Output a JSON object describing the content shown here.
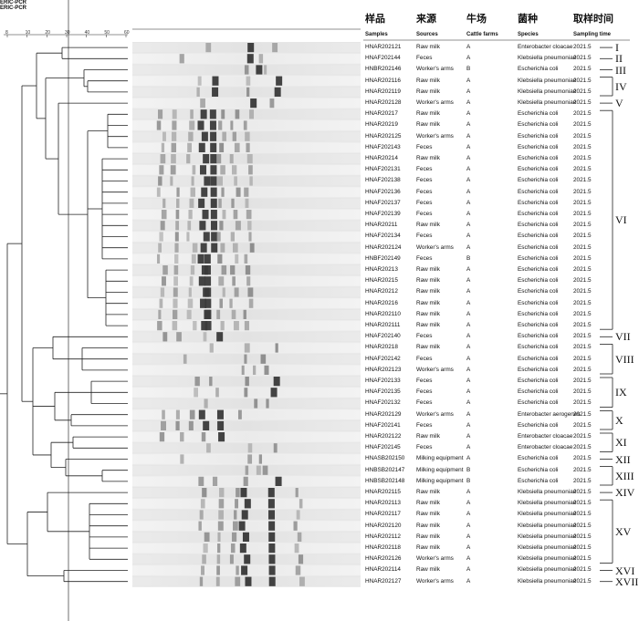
{
  "figure": {
    "dendrogram_title": "ERIC-PCR",
    "gel_title": "ERIC-PCR",
    "scale_ticks": [
      "8",
      "10",
      "20",
      "30",
      "40",
      "50",
      "60"
    ]
  },
  "headers": [
    {
      "zh": "样品",
      "en": "Samples"
    },
    {
      "zh": "来源",
      "en": "Sources"
    },
    {
      "zh": "牛场",
      "en": "Cattle farms"
    },
    {
      "zh": "菌种",
      "en": "Species"
    },
    {
      "zh": "取样时间",
      "en": "Sampling time"
    }
  ],
  "rows": [
    {
      "sample": "HNAR202121",
      "source": "Raw milk",
      "farm": "A",
      "species": "Enterobacter cloacae",
      "time": "2021.5"
    },
    {
      "sample": "HNAF202144",
      "source": "Feces",
      "farm": "A",
      "species": "Klebsiella pneumoniae",
      "time": "2021.5"
    },
    {
      "sample": "HNBR202146",
      "source": "Worker's arms",
      "farm": "B",
      "species": "Escherichia coli",
      "time": "2021.5"
    },
    {
      "sample": "HNAR202116",
      "source": "Raw milk",
      "farm": "A",
      "species": "Klebsiella pneumoniae",
      "time": "2021.5"
    },
    {
      "sample": "HNAR202119",
      "source": "Raw milk",
      "farm": "A",
      "species": "Klebsiella pneumoniae",
      "time": "2021.5"
    },
    {
      "sample": "HNAR202128",
      "source": "Worker's arms",
      "farm": "A",
      "species": "Klebsiella pneumoniae",
      "time": "2021.5"
    },
    {
      "sample": "HNAR20217",
      "source": "Raw milk",
      "farm": "A",
      "species": "Escherichia coli",
      "time": "2021.5"
    },
    {
      "sample": "HNAR20219",
      "source": "Raw milk",
      "farm": "A",
      "species": "Escherichia coli",
      "time": "2021.5"
    },
    {
      "sample": "HNAR202125",
      "source": "Worker's arms",
      "farm": "A",
      "species": "Escherichia coli",
      "time": "2021.5"
    },
    {
      "sample": "HNAF202143",
      "source": "Feces",
      "farm": "A",
      "species": "Escherichia coli",
      "time": "2021.5"
    },
    {
      "sample": "HNAR20214",
      "source": "Raw milk",
      "farm": "A",
      "species": "Escherichia coli",
      "time": "2021.5"
    },
    {
      "sample": "HNAF202131",
      "source": "Feces",
      "farm": "A",
      "species": "Escherichia coli",
      "time": "2021.5"
    },
    {
      "sample": "HNAF202138",
      "source": "Feces",
      "farm": "A",
      "species": "Escherichia coli",
      "time": "2021.5"
    },
    {
      "sample": "HNAF202136",
      "source": "Feces",
      "farm": "A",
      "species": "Escherichia coli",
      "time": "2021.5"
    },
    {
      "sample": "HNAF202137",
      "source": "Feces",
      "farm": "A",
      "species": "Escherichia coli",
      "time": "2021.5"
    },
    {
      "sample": "HNAF202139",
      "source": "Feces",
      "farm": "A",
      "species": "Escherichia coli",
      "time": "2021.5"
    },
    {
      "sample": "HNAR20211",
      "source": "Raw milk",
      "farm": "A",
      "species": "Escherichia coli",
      "time": "2021.5"
    },
    {
      "sample": "HNAF202134",
      "source": "Feces",
      "farm": "A",
      "species": "Escherichia coli",
      "time": "2021.5"
    },
    {
      "sample": "HNAR202124",
      "source": "Worker's arms",
      "farm": "A",
      "species": "Escherichia coli",
      "time": "2021.5"
    },
    {
      "sample": "HNBF202149",
      "source": "Feces",
      "farm": "B",
      "species": "Escherichia coli",
      "time": "2021.5"
    },
    {
      "sample": "HNAR20213",
      "source": "Raw milk",
      "farm": "A",
      "species": "Escherichia coli",
      "time": "2021.5"
    },
    {
      "sample": "HNAR20215",
      "source": "Raw milk",
      "farm": "A",
      "species": "Escherichia coli",
      "time": "2021.5"
    },
    {
      "sample": "HNAR20212",
      "source": "Raw milk",
      "farm": "A",
      "species": "Escherichia coli",
      "time": "2021.5"
    },
    {
      "sample": "HNAR20216",
      "source": "Raw milk",
      "farm": "A",
      "species": "Escherichia coli",
      "time": "2021.5"
    },
    {
      "sample": "HNAR202110",
      "source": "Raw milk",
      "farm": "A",
      "species": "Escherichia coli",
      "time": "2021.5"
    },
    {
      "sample": "HNAR202111",
      "source": "Raw milk",
      "farm": "A",
      "species": "Escherichia coli",
      "time": "2021.5"
    },
    {
      "sample": "HNAF202140",
      "source": "Feces",
      "farm": "A",
      "species": "Escherichia coli",
      "time": "2021.5"
    },
    {
      "sample": "HNAR20218",
      "source": "Raw milk",
      "farm": "A",
      "species": "Escherichia coli",
      "time": "2021.5"
    },
    {
      "sample": "HNAF202142",
      "source": "Feces",
      "farm": "A",
      "species": "Escherichia coli",
      "time": "2021.5"
    },
    {
      "sample": "HNAR202123",
      "source": "Worker's arms",
      "farm": "A",
      "species": "Escherichia coli",
      "time": "2021.5"
    },
    {
      "sample": "HNAF202133",
      "source": "Feces",
      "farm": "A",
      "species": "Escherichia coli",
      "time": "2021.5"
    },
    {
      "sample": "HNAF202135",
      "source": "Feces",
      "farm": "A",
      "species": "Escherichia coli",
      "time": "2021.5"
    },
    {
      "sample": "HNAF202132",
      "source": "Feces",
      "farm": "A",
      "species": "Escherichia coli",
      "time": "2021.5"
    },
    {
      "sample": "HNAR202129",
      "source": "Worker's arms",
      "farm": "A",
      "species": "Enterobacter aerogenes",
      "time": "2021.5"
    },
    {
      "sample": "HNAF202141",
      "source": "Feces",
      "farm": "A",
      "species": "Escherichia coli",
      "time": "2021.5"
    },
    {
      "sample": "HNAR202122",
      "source": "Raw milk",
      "farm": "A",
      "species": "Enterobacter cloacae",
      "time": "2021.5"
    },
    {
      "sample": "HNAF202145",
      "source": "Feces",
      "farm": "A",
      "species": "Enterobacter cloacae",
      "time": "2021.5"
    },
    {
      "sample": "HNASB202150",
      "source": "Milking equipment",
      "farm": "A",
      "species": "Escherichia coli",
      "time": "2021.5"
    },
    {
      "sample": "HNBSB202147",
      "source": "Milking equipment",
      "farm": "B",
      "species": "Escherichia coli",
      "time": "2021.5"
    },
    {
      "sample": "HNBSB202148",
      "source": "Milking equipment",
      "farm": "B",
      "species": "Escherichia coli",
      "time": "2021.5"
    },
    {
      "sample": "HNAR202115",
      "source": "Raw milk",
      "farm": "A",
      "species": "Klebsiella pneumoniae",
      "time": "2021.5"
    },
    {
      "sample": "HNAR202113",
      "source": "Raw milk",
      "farm": "A",
      "species": "Klebsiella pneumoniae",
      "time": "2021.5"
    },
    {
      "sample": "HNAR202117",
      "source": "Raw milk",
      "farm": "A",
      "species": "Klebsiella pneumoniae",
      "time": "2021.5"
    },
    {
      "sample": "HNAR202120",
      "source": "Raw milk",
      "farm": "A",
      "species": "Klebsiella pneumoniae",
      "time": "2021.5"
    },
    {
      "sample": "HNAR202112",
      "source": "Raw milk",
      "farm": "A",
      "species": "Klebsiella pneumoniae",
      "time": "2021.5"
    },
    {
      "sample": "HNAR202118",
      "source": "Raw milk",
      "farm": "A",
      "species": "Klebsiella pneumoniae",
      "time": "2021.5"
    },
    {
      "sample": "HNAR202126",
      "source": "Worker's arms",
      "farm": "A",
      "species": "Klebsiella pneumoniae",
      "time": "2021.5"
    },
    {
      "sample": "HNAR202114",
      "source": "Raw milk",
      "farm": "A",
      "species": "Klebsiella pneumoniae",
      "time": "2021.5"
    },
    {
      "sample": "HNAR202127",
      "source": "Worker's arms",
      "farm": "A",
      "species": "Klebsiella pneumoniae",
      "time": "2021.5"
    }
  ],
  "clusters": [
    {
      "label": "I",
      "first": 0,
      "last": 0
    },
    {
      "label": "II",
      "first": 1,
      "last": 1
    },
    {
      "label": "III",
      "first": 2,
      "last": 2
    },
    {
      "label": "IV",
      "first": 3,
      "last": 4
    },
    {
      "label": "V",
      "first": 5,
      "last": 5
    },
    {
      "label": "VI",
      "first": 6,
      "last": 25
    },
    {
      "label": "VII",
      "first": 26,
      "last": 26
    },
    {
      "label": "VIII",
      "first": 27,
      "last": 29
    },
    {
      "label": "IX",
      "first": 30,
      "last": 32
    },
    {
      "label": "X",
      "first": 33,
      "last": 34
    },
    {
      "label": "XI",
      "first": 35,
      "last": 36
    },
    {
      "label": "XII",
      "first": 37,
      "last": 37
    },
    {
      "label": "XIII",
      "first": 38,
      "last": 39
    },
    {
      "label": "XIV",
      "first": 40,
      "last": 40
    },
    {
      "label": "XV",
      "first": 41,
      "last": 46
    },
    {
      "label": "XVI",
      "first": 47,
      "last": 47
    },
    {
      "label": "XVII",
      "first": 48,
      "last": 48
    }
  ],
  "colors": {
    "text": "#111111",
    "line": "#222222",
    "band": "#000000"
  }
}
